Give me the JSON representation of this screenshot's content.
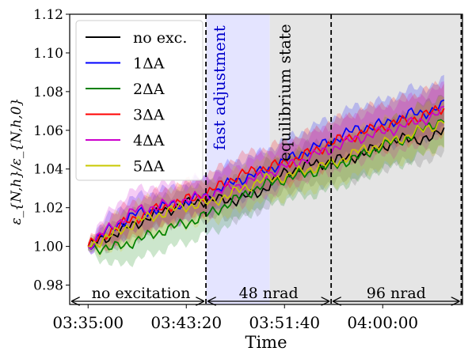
{
  "chart_data": {
    "type": "line",
    "title": "",
    "xlabel": "Time",
    "ylabel": "ε_{N,h}/ε_{N,h,0}",
    "x_unit": "seconds since 03:35:00",
    "xlim": [
      -1500,
      30500
    ],
    "ylim": [
      0.97,
      1.12
    ],
    "x_ticks": [
      {
        "value": 0,
        "label": "03:35:00"
      },
      {
        "value": 8000,
        "label": "03:43:20"
      },
      {
        "value": 16000,
        "label": "03:51:40"
      },
      {
        "value": 24000,
        "label": "04:00:00"
      }
    ],
    "y_ticks": [
      {
        "value": 0.98,
        "label": "0.98"
      },
      {
        "value": 1.0,
        "label": "1.00"
      },
      {
        "value": 1.02,
        "label": "1.02"
      },
      {
        "value": 1.04,
        "label": "1.04"
      },
      {
        "value": 1.06,
        "label": "1.06"
      },
      {
        "value": 1.08,
        "label": "1.08"
      },
      {
        "value": 1.1,
        "label": "1.10"
      },
      {
        "value": 1.12,
        "label": "1.12"
      }
    ],
    "legend_position": "top-left",
    "regions": [
      {
        "name": "fast adjustment",
        "x_start": 9600,
        "x_end": 14800,
        "color": "#e4e4ff",
        "label_color": "#0000cc"
      },
      {
        "name": "equilibrium state",
        "x_start": 14800,
        "x_end": 30500,
        "color": "#e5e5e5",
        "label_color": "#000000"
      }
    ],
    "vlines": [
      9600,
      19800,
      30400
    ],
    "phases": [
      {
        "label": "no excitation",
        "x_start": -1500,
        "x_end": 9600
      },
      {
        "label": "48 nrad",
        "x_start": 9600,
        "x_end": 19800
      },
      {
        "label": "96 nrad",
        "x_start": 19800,
        "x_end": 30400
      }
    ],
    "x": [
      0,
      2000,
      4000,
      6000,
      8000,
      9600,
      12000,
      14000,
      16000,
      18000,
      20000,
      22000,
      24000,
      26000,
      28000,
      29000
    ],
    "series": [
      {
        "name": "no exc.",
        "color": "#000000",
        "band_color": "#555555",
        "values": [
          1.0,
          1.006,
          1.012,
          1.018,
          1.022,
          1.024,
          1.024,
          1.028,
          1.038,
          1.042,
          1.044,
          1.047,
          1.052,
          1.056,
          1.055,
          1.062
        ],
        "band": [
          0.002,
          0.007,
          0.008,
          0.008,
          0.008,
          0.009,
          0.01,
          0.01,
          0.01,
          0.011,
          0.011,
          0.012,
          0.012,
          0.012,
          0.012,
          0.012
        ]
      },
      {
        "name": "1ΔA",
        "color": "#0000ff",
        "band_color": "#0000ff",
        "values": [
          1.0,
          1.01,
          1.017,
          1.02,
          1.023,
          1.026,
          1.034,
          1.038,
          1.044,
          1.05,
          1.055,
          1.061,
          1.063,
          1.068,
          1.07,
          1.073
        ],
        "band": [
          0.002,
          0.008,
          0.009,
          0.009,
          0.009,
          0.01,
          0.01,
          0.01,
          0.011,
          0.011,
          0.012,
          0.012,
          0.012,
          0.013,
          0.013,
          0.013
        ]
      },
      {
        "name": "2ΔA",
        "color": "#008000",
        "band_color": "#008000",
        "values": [
          1.0,
          0.999,
          1.003,
          1.008,
          1.012,
          1.016,
          1.024,
          1.031,
          1.035,
          1.038,
          1.042,
          1.046,
          1.052,
          1.056,
          1.063,
          1.066
        ],
        "band": [
          0.002,
          0.009,
          0.01,
          0.01,
          0.01,
          0.01,
          0.011,
          0.011,
          0.011,
          0.012,
          0.012,
          0.012,
          0.012,
          0.013,
          0.013,
          0.013
        ]
      },
      {
        "name": "3ΔA",
        "color": "#ff0000",
        "band_color": "#ff0000",
        "values": [
          1.0,
          1.009,
          1.015,
          1.02,
          1.024,
          1.027,
          1.036,
          1.04,
          1.043,
          1.048,
          1.054,
          1.058,
          1.062,
          1.065,
          1.069,
          1.072
        ],
        "band": [
          0.002,
          0.008,
          0.009,
          0.009,
          0.009,
          0.009,
          0.01,
          0.01,
          0.011,
          0.011,
          0.011,
          0.012,
          0.012,
          0.012,
          0.013,
          0.013
        ]
      },
      {
        "name": "4ΔA",
        "color": "#cc00cc",
        "band_color": "#cc00cc",
        "values": [
          1.0,
          1.011,
          1.019,
          1.021,
          1.024,
          1.026,
          1.031,
          1.036,
          1.041,
          1.046,
          1.051,
          1.056,
          1.059,
          1.063,
          1.067,
          1.07
        ],
        "band": [
          0.002,
          0.01,
          0.011,
          0.011,
          0.01,
          0.01,
          0.01,
          0.011,
          0.011,
          0.011,
          0.012,
          0.012,
          0.012,
          0.013,
          0.013,
          0.013
        ]
      },
      {
        "name": "5ΔA",
        "color": "#c8c800",
        "band_color": "#c8c800",
        "values": [
          1.0,
          1.006,
          1.013,
          1.017,
          1.021,
          1.022,
          1.028,
          1.034,
          1.036,
          1.04,
          1.043,
          1.049,
          1.053,
          1.057,
          1.062,
          1.065
        ],
        "band": [
          0.002,
          0.009,
          0.01,
          0.01,
          0.01,
          0.01,
          0.011,
          0.011,
          0.011,
          0.011,
          0.012,
          0.012,
          0.012,
          0.012,
          0.013,
          0.013
        ]
      }
    ]
  }
}
